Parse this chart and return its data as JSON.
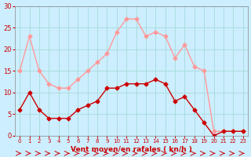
{
  "hours": [
    0,
    1,
    2,
    3,
    4,
    5,
    6,
    7,
    8,
    9,
    10,
    11,
    12,
    13,
    14,
    15,
    16,
    17,
    18,
    19,
    20,
    21,
    22,
    23
  ],
  "wind_avg": [
    6,
    10,
    6,
    4,
    4,
    4,
    6,
    7,
    8,
    11,
    11,
    12,
    12,
    12,
    13,
    12,
    8,
    9,
    6,
    3,
    0,
    1,
    1,
    1
  ],
  "wind_gust": [
    15,
    23,
    15,
    12,
    11,
    11,
    13,
    15,
    17,
    19,
    24,
    27,
    27,
    23,
    24,
    23,
    18,
    21,
    16,
    15,
    1,
    1,
    1,
    1
  ],
  "avg_color": "#cc0000",
  "gust_color": "#ff9999",
  "bg_color": "#cceeff",
  "grid_color": "#aadddd",
  "xlabel": "Vent moyen/en rafales ( kn/h )",
  "xlabel_color": "#cc0000",
  "ylabel_color": "#cc0000",
  "yticks": [
    0,
    5,
    10,
    15,
    20,
    25,
    30
  ],
  "ylim": [
    0,
    30
  ],
  "xlim": [
    0,
    23
  ]
}
